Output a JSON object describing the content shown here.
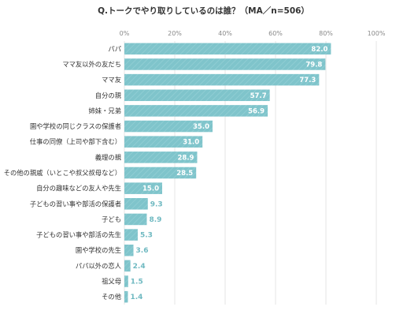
{
  "chart_data": {
    "type": "bar",
    "orientation": "horizontal",
    "title": "Q.トークでやり取りしているのは誰？（MA／n=506）",
    "xlim": [
      0,
      100
    ],
    "x_ticks": [
      "0%",
      "20%",
      "40%",
      "60%",
      "80%",
      "100%"
    ],
    "grid": true,
    "bar_color": "#7fc4cb",
    "categories": [
      "パパ",
      "ママ友以外の友だち",
      "ママ友",
      "自分の親",
      "姉妹・兄弟",
      "園や学校の同じクラスの保護者",
      "仕事の同僚（上司や部下含む）",
      "義理の親",
      "その他の親戚（いとこや叔父叔母など）",
      "自分の趣味などの友人や先生",
      "子どもの習い事や部活の保護者",
      "子ども",
      "子どもの習い事や部活の先生",
      "園や学校の先生",
      "パパ以外の恋人",
      "祖父母",
      "その他"
    ],
    "values": [
      82.0,
      79.8,
      77.3,
      57.7,
      56.9,
      35.0,
      31.0,
      28.9,
      28.5,
      15.0,
      9.3,
      8.9,
      5.3,
      3.6,
      2.4,
      1.5,
      1.4
    ],
    "value_labels": [
      "82.0",
      "79.8",
      "77.3",
      "57.7",
      "56.9",
      "35.0",
      "31.0",
      "28.9",
      "28.5",
      "15.0",
      "9.3",
      "8.9",
      "5.3",
      "3.6",
      "2.4",
      "1.5",
      "1.4"
    ]
  }
}
